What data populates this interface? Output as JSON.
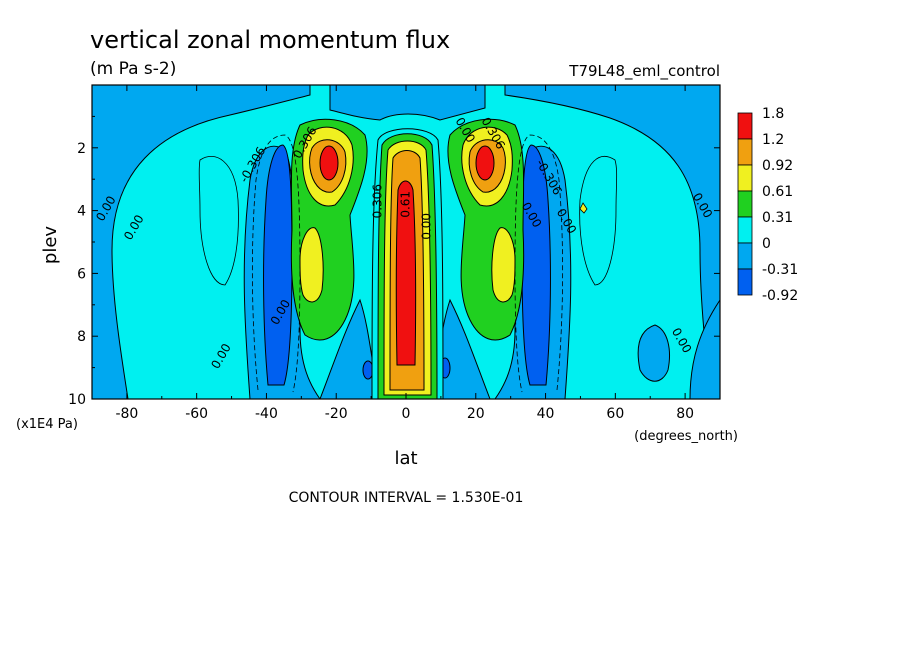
{
  "chart_data": {
    "type": "contour",
    "title": "vertical zonal momentum flux",
    "subtitle": "(m Pa s-2)",
    "dataset_label": "T79L48_eml_control",
    "xlabel": "lat",
    "x_units": "(degrees_north)",
    "ylabel": "plev",
    "y_units": "(x1E4 Pa)",
    "xlim": [
      -90,
      90
    ],
    "ylim": [
      10,
      0
    ],
    "x_ticks": [
      "-80",
      "-60",
      "-40",
      "-20",
      "0",
      "20",
      "40",
      "60",
      "80"
    ],
    "x_tick_values": [
      -80,
      -60,
      -40,
      -20,
      0,
      20,
      40,
      60,
      80
    ],
    "y_ticks": [
      "2",
      "4",
      "6",
      "8",
      "10"
    ],
    "y_tick_values": [
      2,
      4,
      6,
      8,
      10
    ],
    "footer": "CONTOUR INTERVAL = 1.530E-01",
    "legend": {
      "placement": "right",
      "labels": [
        "1.8",
        "1.2",
        "0.92",
        "0.61",
        "0.31",
        "0",
        "-0.31",
        "-0.92"
      ],
      "colors": [
        "#f01010",
        "#f0a010",
        "#f0f020",
        "#20d020",
        "#00f0f0",
        "#00a8f0",
        "#0060f0"
      ]
    },
    "contour_labels": [
      {
        "text": "0.306",
        "lat": -28,
        "plev": 1.9
      },
      {
        "text": "-0.306",
        "lat": -43,
        "plev": 2.6
      },
      {
        "text": "0.00",
        "lat": -85,
        "plev": 4.0
      },
      {
        "text": "0.00",
        "lat": -77,
        "plev": 4.6
      },
      {
        "text": "0.00",
        "lat": -52,
        "plev": 8.7
      },
      {
        "text": "0.00",
        "lat": -35,
        "plev": 7.3
      },
      {
        "text": "0.00",
        "lat": 16,
        "plev": 1.5
      },
      {
        "text": "0.306",
        "lat": 24,
        "plev": 1.6
      },
      {
        "text": "-0.306",
        "lat": 40,
        "plev": 3.0
      },
      {
        "text": "0.00",
        "lat": 35,
        "plev": 4.2
      },
      {
        "text": "0.00",
        "lat": 45,
        "plev": 4.4
      },
      {
        "text": "0.00",
        "lat": 84,
        "plev": 3.9
      },
      {
        "text": "0.00",
        "lat": 78,
        "plev": 8.2
      },
      {
        "text": "0.306",
        "lat": -7,
        "plev": 3.7
      },
      {
        "text": "0.61",
        "lat": 1,
        "plev": 3.8
      },
      {
        "text": "0.00",
        "lat": 7,
        "plev": 4.5
      }
    ],
    "fields": [
      {
        "level": "-0.31",
        "shape": "band",
        "lat": -40,
        "plev": [
          1.8,
          9.6
        ],
        "halfwidth": 5
      },
      {
        "level": "-0.31",
        "shape": "band",
        "lat": 40,
        "plev": [
          1.8,
          9.6
        ],
        "halfwidth": 5
      },
      {
        "level": "0.31",
        "shape": "lobe",
        "lat": -25,
        "plev": [
          1.3,
          8.2
        ],
        "halfwidth": 9
      },
      {
        "level": "0.31",
        "shape": "lobe",
        "lat": 25,
        "plev": [
          1.3,
          8.2
        ],
        "halfwidth": 9
      },
      {
        "level": "0.61",
        "shape": "blob",
        "lat": -23,
        "plev": [
          1.8,
          3.6
        ],
        "halfwidth": 6
      },
      {
        "level": "0.61",
        "shape": "blob",
        "lat": 23,
        "plev": [
          1.8,
          3.6
        ],
        "halfwidth": 6
      },
      {
        "level": "0.61",
        "shape": "blob",
        "lat": -29,
        "plev": [
          4.8,
          6.8
        ],
        "halfwidth": 3
      },
      {
        "level": "0.61",
        "shape": "blob",
        "lat": 29,
        "plev": [
          4.8,
          6.8
        ],
        "halfwidth": 3
      },
      {
        "level": "1.8",
        "shape": "blob",
        "lat": -20,
        "plev": [
          2.1,
          3.1
        ],
        "halfwidth": 2.5
      },
      {
        "level": "1.8",
        "shape": "blob",
        "lat": 20,
        "plev": [
          2.1,
          3.1
        ],
        "halfwidth": 2.5
      },
      {
        "level": "0.61",
        "shape": "column",
        "lat": 0,
        "plev": [
          1.2,
          10
        ],
        "halfwidth": 6
      },
      {
        "level": "1.8",
        "shape": "column",
        "lat": 0,
        "plev": [
          3.0,
          9.0
        ],
        "halfwidth": 2.5
      }
    ]
  }
}
